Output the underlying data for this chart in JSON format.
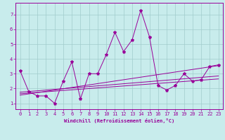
{
  "bg_color": "#c8ecec",
  "grid_color": "#a0cccc",
  "line_color": "#990099",
  "xlim": [
    -0.5,
    23.5
  ],
  "ylim": [
    0.6,
    7.8
  ],
  "xticks": [
    0,
    1,
    2,
    3,
    4,
    5,
    6,
    7,
    8,
    9,
    10,
    11,
    12,
    13,
    14,
    15,
    16,
    17,
    18,
    19,
    20,
    21,
    22,
    23
  ],
  "yticks": [
    1,
    2,
    3,
    4,
    5,
    6,
    7
  ],
  "main_x": [
    0,
    1,
    2,
    3,
    4,
    5,
    6,
    7,
    8,
    9,
    10,
    11,
    12,
    13,
    14,
    15,
    16,
    17,
    18,
    19,
    20,
    21,
    22,
    23
  ],
  "main_y": [
    3.2,
    1.8,
    1.5,
    1.5,
    1.0,
    2.5,
    3.8,
    1.3,
    3.0,
    3.0,
    4.3,
    5.8,
    4.5,
    5.3,
    7.3,
    5.5,
    2.2,
    1.9,
    2.2,
    3.0,
    2.5,
    2.6,
    3.5,
    3.6
  ],
  "line2_x": [
    0,
    23
  ],
  "line2_y": [
    1.75,
    2.85
  ],
  "line3_x": [
    0,
    23
  ],
  "line3_y": [
    1.65,
    2.65
  ],
  "line4_x": [
    0,
    23
  ],
  "line4_y": [
    1.55,
    3.55
  ],
  "xlabel": "Windchill (Refroidissement éolien,°C)",
  "tick_fontsize": 5,
  "xlabel_fontsize": 5,
  "linewidth": 0.7,
  "markersize": 3
}
